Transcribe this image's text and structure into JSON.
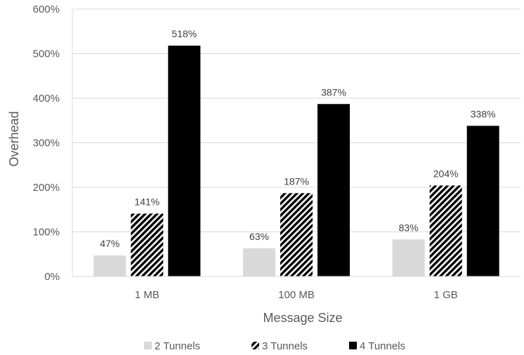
{
  "chart_data": {
    "type": "bar",
    "title": "",
    "xlabel": "Message Size",
    "ylabel": "Overhead",
    "categories": [
      "1 MB",
      "100 MB",
      "1 GB"
    ],
    "ylim": [
      0,
      600
    ],
    "yticks": [
      0,
      100,
      200,
      300,
      400,
      500,
      600
    ],
    "ytick_labels": [
      "0%",
      "100%",
      "200%",
      "300%",
      "400%",
      "500%",
      "600%"
    ],
    "grid": true,
    "legend_position": "bottom",
    "series": [
      {
        "name": "2 Tunnels",
        "values": [
          47,
          63,
          83
        ],
        "labels": [
          "47%",
          "63%",
          "83%"
        ],
        "color": "#d9d9d9",
        "pattern": "solid"
      },
      {
        "name": "3 Tunnels",
        "values": [
          141,
          187,
          204
        ],
        "labels": [
          "141%",
          "187%",
          "204%"
        ],
        "color": "#000000",
        "pattern": "diagonal-stripes"
      },
      {
        "name": "4 Tunnels",
        "values": [
          518,
          387,
          338
        ],
        "labels": [
          "518%",
          "387%",
          "338%"
        ],
        "color": "#000000",
        "pattern": "solid"
      }
    ]
  }
}
